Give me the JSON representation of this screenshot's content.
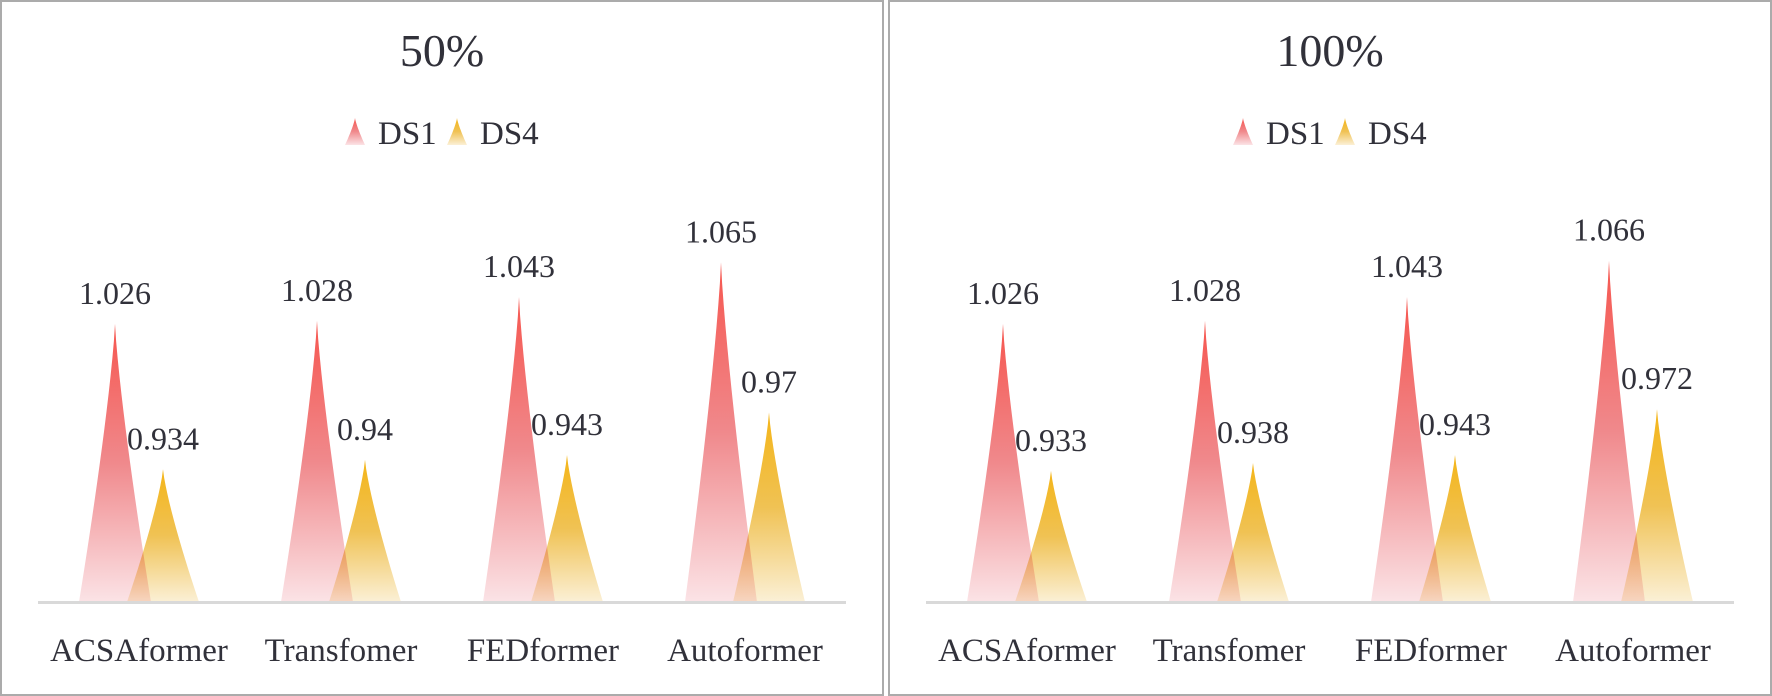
{
  "chart_data": [
    {
      "type": "bar",
      "style": "gradient-peak",
      "title": "50%",
      "categories": [
        "ACSAformer",
        "Transfomer",
        "FEDformer",
        "Autoformer"
      ],
      "series": [
        {
          "name": "DS1",
          "values": [
            1.026,
            1.028,
            1.043,
            1.065
          ],
          "labels": [
            "1.026",
            "1.028",
            "1.043",
            "1.065"
          ]
        },
        {
          "name": "DS4",
          "values": [
            0.934,
            0.94,
            0.943,
            0.97
          ],
          "labels": [
            "0.934",
            "0.94",
            "0.943",
            "0.97"
          ]
        }
      ],
      "xlabel": "",
      "ylabel": "",
      "ylim": [
        0.85,
        1.1
      ],
      "grid": false,
      "legend_position": "top-center"
    },
    {
      "type": "bar",
      "style": "gradient-peak",
      "title": "100%",
      "categories": [
        "ACSAformer",
        "Transfomer",
        "FEDformer",
        "Autoformer"
      ],
      "series": [
        {
          "name": "DS1",
          "values": [
            1.026,
            1.028,
            1.043,
            1.066
          ],
          "labels": [
            "1.026",
            "1.028",
            "1.043",
            "1.066"
          ]
        },
        {
          "name": "DS4",
          "values": [
            0.933,
            0.938,
            0.943,
            0.972
          ],
          "labels": [
            "0.933",
            "0.938",
            "0.943",
            "0.972"
          ]
        }
      ],
      "xlabel": "",
      "ylabel": "",
      "ylim": [
        0.85,
        1.1
      ],
      "grid": false,
      "legend_position": "top-center"
    }
  ],
  "colors": {
    "ds1_top": "#F6564F",
    "ds1_mid": "#F0898C",
    "ds1_base": "#FBE3E6",
    "ds4_top": "#F4B519",
    "ds4_mid": "#F0C254",
    "ds4_base": "#FBF0D6",
    "text": "#31313A",
    "baseline": "#D9D9D9",
    "panel_border": "#ABABAB"
  }
}
